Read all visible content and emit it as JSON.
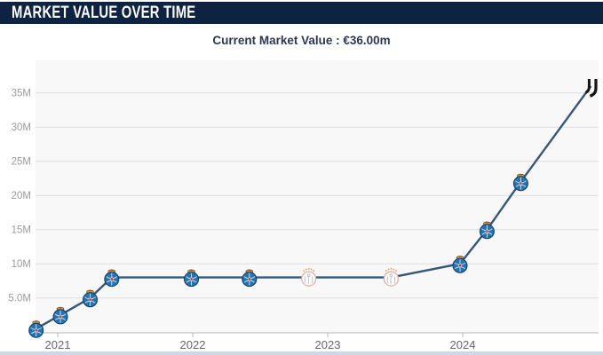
{
  "header": {
    "title": "MARKET VALUE OVER TIME"
  },
  "subtitle": {
    "text": "Current Market Value : €36.00m"
  },
  "colors": {
    "header_bg": "#0e2242",
    "subtitle_text": "#2b3852",
    "plot_bg": "#f8f8f8",
    "gridline": "#dedede",
    "axis_line": "#b9b9b9",
    "y_label": "#9b9b9b",
    "x_label": "#666666",
    "line": "#35567d",
    "porto_blue": "#2274b5",
    "porto_crown_gold": "#c9974e",
    "ajax_white": "#fbfbfb",
    "ajax_border_pink": "#e3aaa5",
    "ajax_dot_orange": "#e59b3e",
    "juventus_black": "#151515",
    "bottom_strip": "#cdd9e4"
  },
  "chart_data": {
    "type": "line",
    "title": "Market value over time",
    "legend": "none",
    "grid": true,
    "xlim": [
      2020.78,
      2025.03
    ],
    "ylim_m": [
      0,
      39.7
    ],
    "x_ticks": [
      {
        "value": 2021,
        "label": "2021"
      },
      {
        "value": 2022,
        "label": "2022"
      },
      {
        "value": 2023,
        "label": "2023"
      },
      {
        "value": 2024,
        "label": "2024"
      }
    ],
    "y_ticks": [
      {
        "value_m": 5,
        "label": "5.0M"
      },
      {
        "value_m": 10,
        "label": "10M"
      },
      {
        "value_m": 15,
        "label": "15M"
      },
      {
        "value_m": 20,
        "label": "20M"
      },
      {
        "value_m": 25,
        "label": "25M"
      },
      {
        "value_m": 30,
        "label": "30M"
      },
      {
        "value_m": 35,
        "label": "35M"
      }
    ],
    "points": [
      {
        "x": 2020.84,
        "value_m": 0.5,
        "club": "fc-porto",
        "icon": "fc-porto-crest-icon"
      },
      {
        "x": 2021.02,
        "value_m": 2.5,
        "club": "fc-porto",
        "icon": "fc-porto-crest-icon"
      },
      {
        "x": 2021.24,
        "value_m": 5.0,
        "club": "fc-porto",
        "icon": "fc-porto-crest-icon"
      },
      {
        "x": 2021.4,
        "value_m": 8.0,
        "club": "fc-porto",
        "icon": "fc-porto-crest-icon"
      },
      {
        "x": 2021.99,
        "value_m": 8.0,
        "club": "fc-porto",
        "icon": "fc-porto-crest-icon"
      },
      {
        "x": 2022.42,
        "value_m": 8.0,
        "club": "fc-porto",
        "icon": "fc-porto-crest-icon"
      },
      {
        "x": 2022.86,
        "value_m": 8.0,
        "club": "ajax",
        "icon": "ajax-crest-icon"
      },
      {
        "x": 2023.47,
        "value_m": 8.0,
        "club": "ajax",
        "icon": "ajax-crest-icon"
      },
      {
        "x": 2023.98,
        "value_m": 10.0,
        "club": "fc-porto",
        "icon": "fc-porto-crest-icon"
      },
      {
        "x": 2024.18,
        "value_m": 15.0,
        "club": "fc-porto",
        "icon": "fc-porto-crest-icon"
      },
      {
        "x": 2024.43,
        "value_m": 22.0,
        "club": "fc-porto",
        "icon": "fc-porto-crest-icon"
      },
      {
        "x": 2024.95,
        "value_m": 36.0,
        "club": "juventus",
        "icon": "juventus-logo-icon"
      }
    ]
  }
}
